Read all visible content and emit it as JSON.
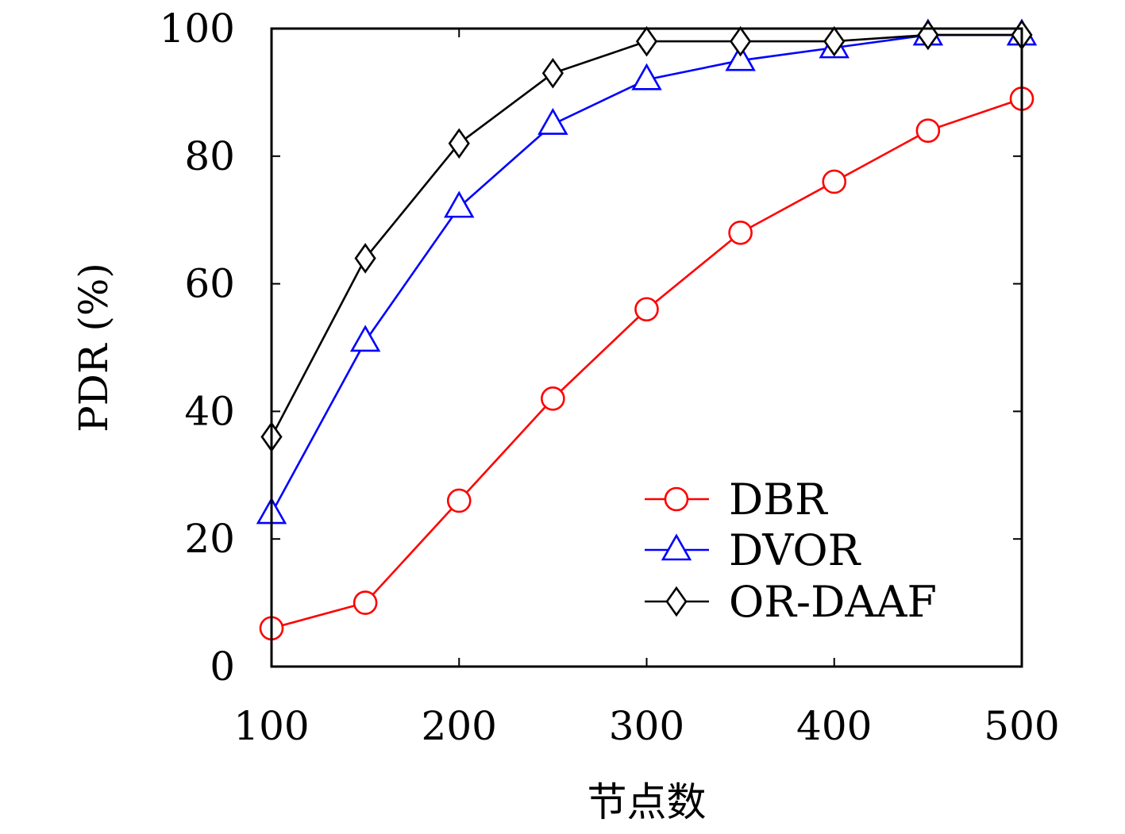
{
  "chart_data": {
    "type": "line",
    "title": "",
    "xlabel": "节点数",
    "ylabel": "PDR (%)",
    "x": [
      100,
      150,
      200,
      250,
      300,
      350,
      400,
      450,
      500
    ],
    "xlim": [
      100,
      500
    ],
    "ylim": [
      0,
      100
    ],
    "xticks": [
      "100",
      "200",
      "300",
      "400",
      "500"
    ],
    "yticks": [
      "0",
      "20",
      "40",
      "60",
      "80",
      "100"
    ],
    "grid": false,
    "legend_position": "bottom-right",
    "series": [
      {
        "name": "DBR",
        "color": "#ff0000",
        "marker": "circle",
        "values": [
          6,
          10,
          26,
          42,
          56,
          68,
          76,
          84,
          89
        ]
      },
      {
        "name": "DVOR",
        "color": "#0000ff",
        "marker": "triangle",
        "values": [
          24,
          51,
          72,
          85,
          92,
          95,
          97,
          99,
          99
        ]
      },
      {
        "name": "OR-DAAF",
        "color": "#000000",
        "marker": "diamond",
        "values": [
          36,
          64,
          82,
          93,
          98,
          98,
          98,
          99,
          99
        ]
      }
    ]
  }
}
